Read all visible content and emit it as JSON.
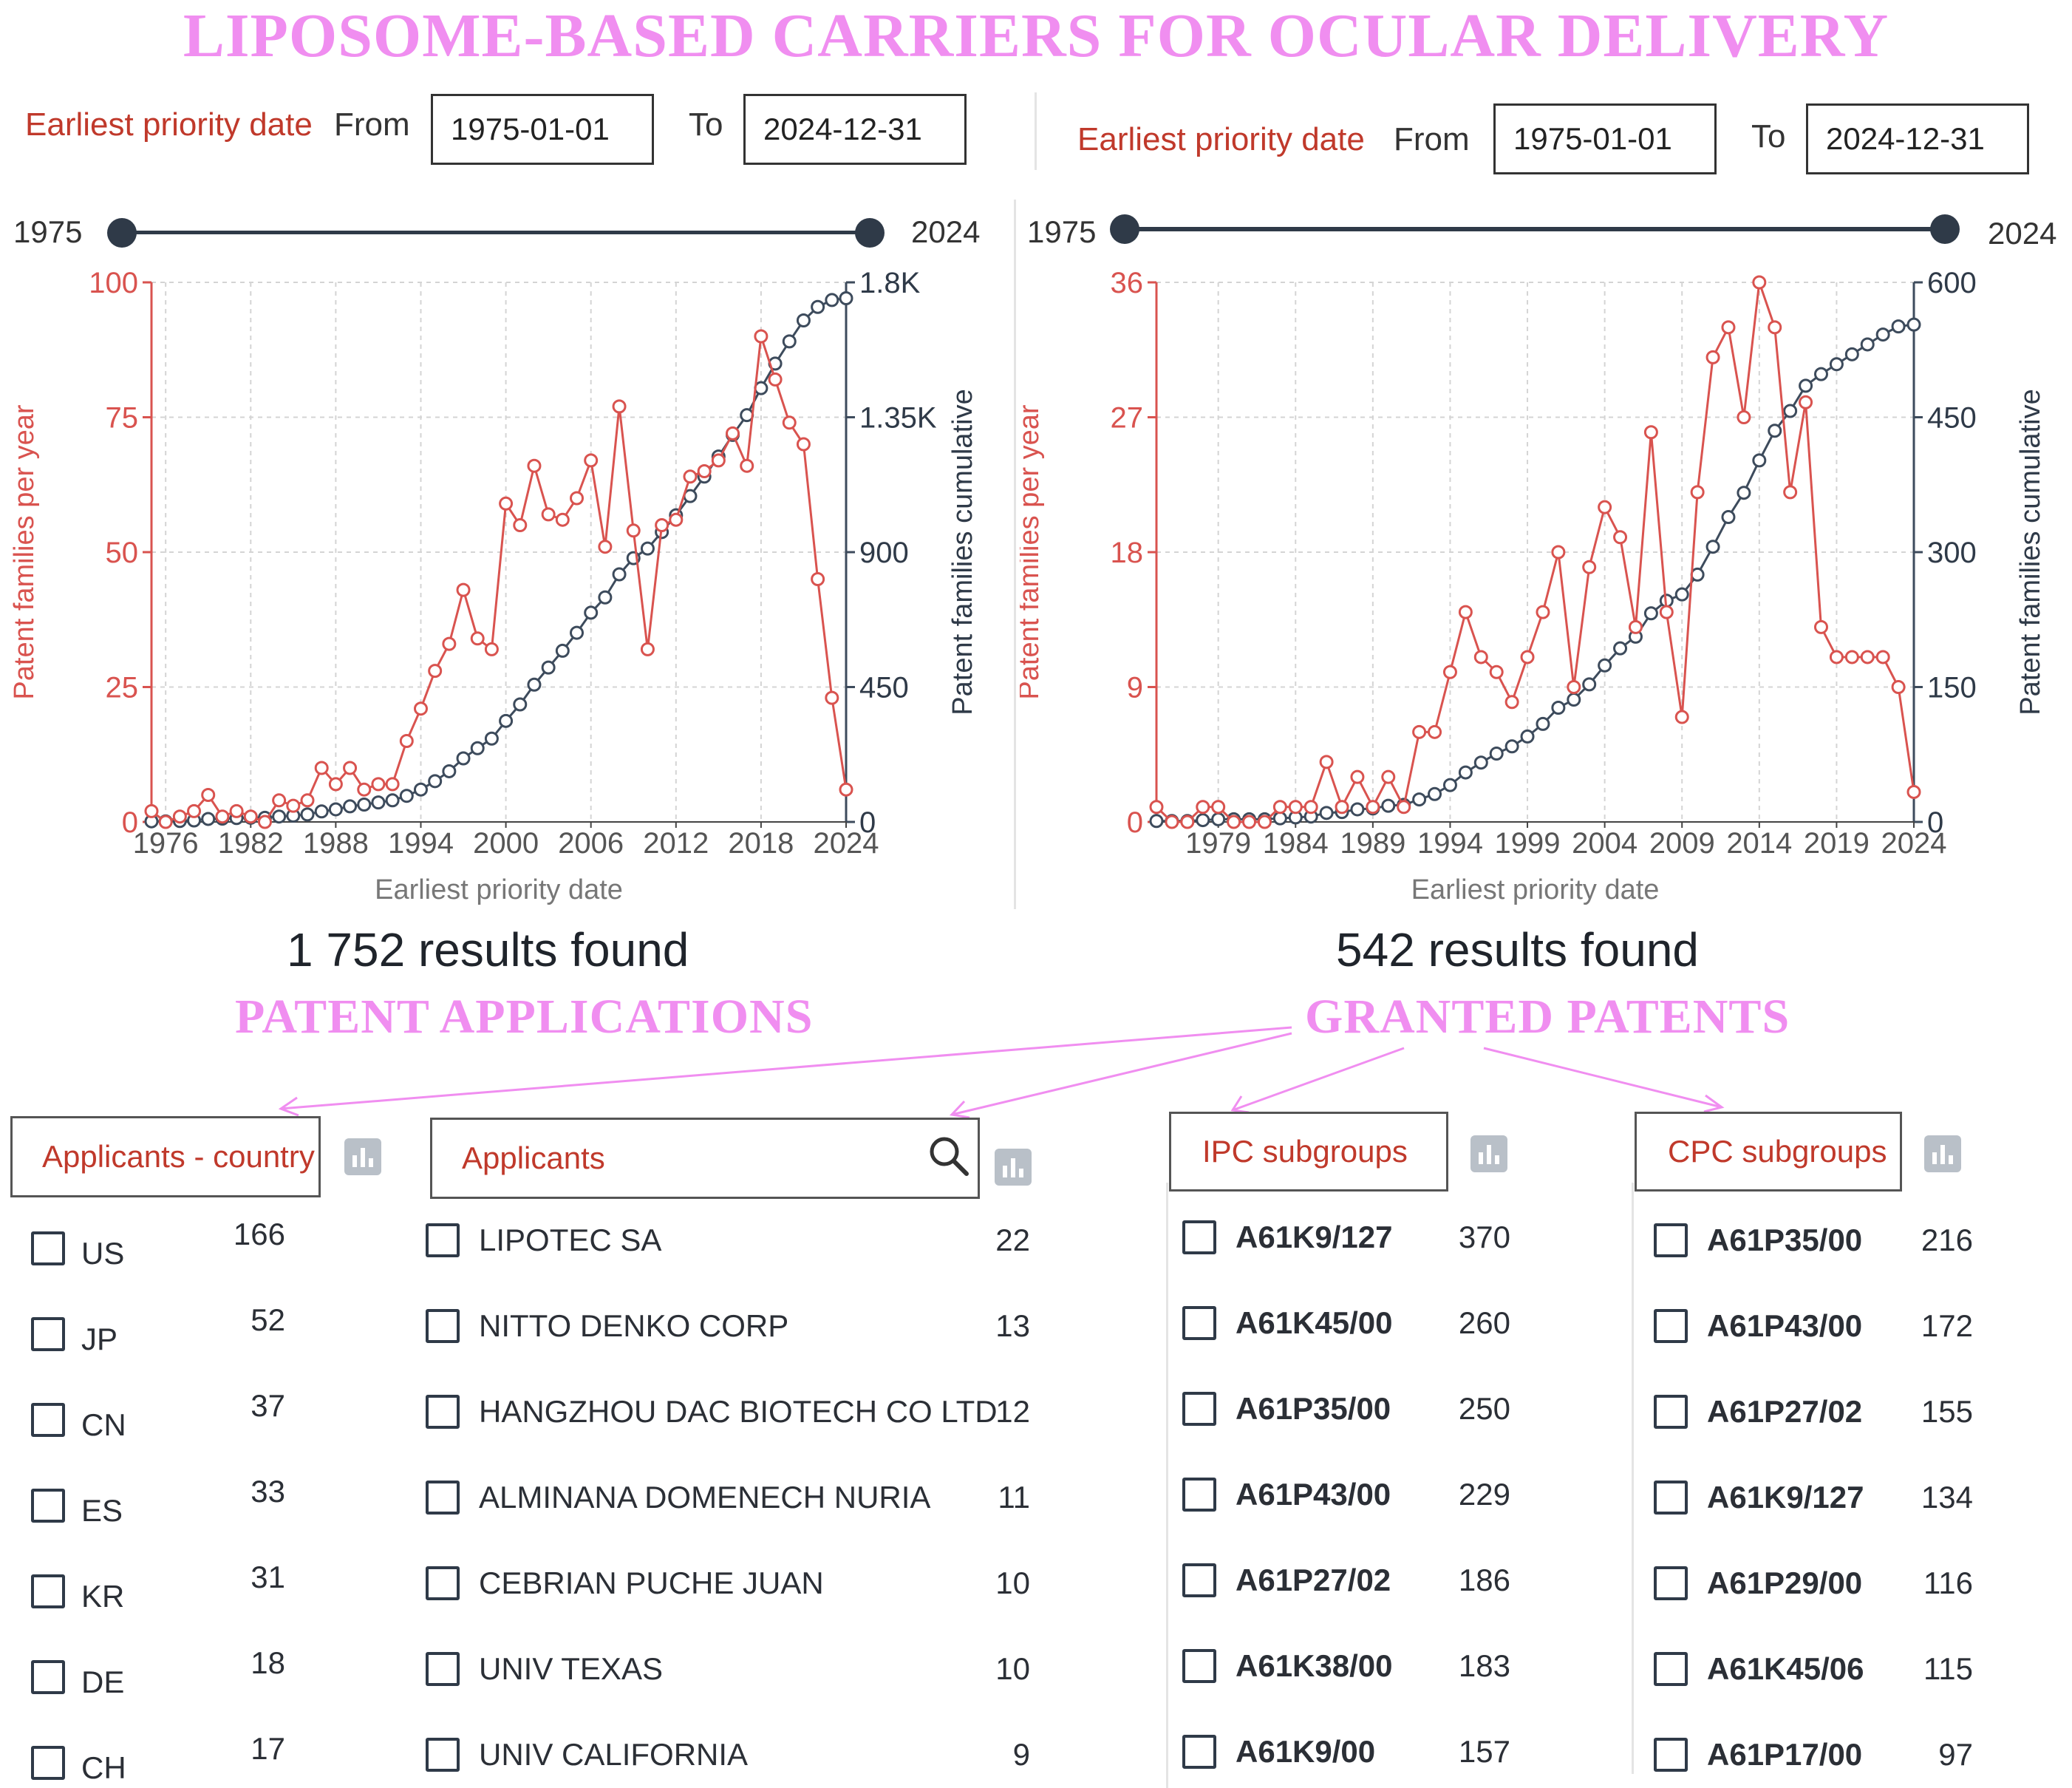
{
  "title": "LIPOSOME-BASED CARRIERS FOR OCULAR DELIVERY",
  "panels": [
    {
      "filter_label": "Earliest priority date",
      "from_label": "From",
      "from_value": "1975-01-01",
      "to_label": "To",
      "to_value": "2024-12-31",
      "slider_min": "1975",
      "slider_max": "2024",
      "results": "1 752 results found",
      "section_label": "PATENT APPLICATIONS"
    },
    {
      "filter_label": "Earliest priority date",
      "from_label": "From",
      "from_value": "1975-01-01",
      "to_label": "To",
      "to_value": "2024-12-31",
      "slider_min": "1975",
      "slider_max": "2024",
      "results": "542 results found",
      "section_label": "GRANTED PATENTS"
    }
  ],
  "chart_data": [
    {
      "type": "line",
      "title": "",
      "xlabel": "Earliest priority date",
      "ylabel_left": "Patent families per year",
      "ylabel_right": "Patent families cumulative",
      "xlim": [
        1975,
        2024
      ],
      "ylim_left": [
        0,
        100
      ],
      "ylim_right": [
        0,
        1800
      ],
      "x_ticks": [
        "1976",
        "1982",
        "1988",
        "1994",
        "2000",
        "2006",
        "2012",
        "2018",
        "2024"
      ],
      "y_ticks_left": [
        "0",
        "25",
        "50",
        "75",
        "100"
      ],
      "y_ticks_right": [
        "0",
        "450",
        "900",
        "1.35K",
        "1.8K"
      ],
      "grid": true,
      "series": [
        {
          "name": "Patent families per year",
          "axis": "left",
          "color": "#d9534f",
          "x": [
            1975,
            1976,
            1977,
            1978,
            1979,
            1980,
            1981,
            1982,
            1983,
            1984,
            1985,
            1986,
            1987,
            1988,
            1989,
            1990,
            1991,
            1992,
            1993,
            1994,
            1995,
            1996,
            1997,
            1998,
            1999,
            2000,
            2001,
            2002,
            2003,
            2004,
            2005,
            2006,
            2007,
            2008,
            2009,
            2010,
            2011,
            2012,
            2013,
            2014,
            2015,
            2016,
            2017,
            2018,
            2019,
            2020,
            2021,
            2022,
            2023,
            2024
          ],
          "values": [
            2,
            0,
            1,
            2,
            5,
            1,
            2,
            1,
            0,
            4,
            3,
            4,
            10,
            7,
            10,
            6,
            7,
            7,
            15,
            21,
            28,
            33,
            43,
            34,
            32,
            59,
            55,
            66,
            57,
            56,
            60,
            67,
            51,
            77,
            54,
            32,
            55,
            56,
            64,
            65,
            67,
            72,
            66,
            90,
            82,
            74,
            70,
            45,
            23,
            6
          ]
        },
        {
          "name": "Patent families cumulative",
          "axis": "right",
          "color": "#3d4b5c",
          "x": [
            1975,
            1976,
            1977,
            1978,
            1979,
            1980,
            1981,
            1982,
            1983,
            1984,
            1985,
            1986,
            1987,
            1988,
            1989,
            1990,
            1991,
            1992,
            1993,
            1994,
            1995,
            1996,
            1997,
            1998,
            1999,
            2000,
            2001,
            2002,
            2003,
            2004,
            2005,
            2006,
            2007,
            2008,
            2009,
            2010,
            2011,
            2012,
            2013,
            2014,
            2015,
            2016,
            2017,
            2018,
            2019,
            2020,
            2021,
            2022,
            2023,
            2024
          ],
          "values": [
            2,
            2,
            3,
            5,
            10,
            11,
            13,
            14,
            14,
            18,
            21,
            25,
            35,
            42,
            52,
            58,
            65,
            72,
            87,
            108,
            136,
            169,
            212,
            246,
            278,
            337,
            392,
            458,
            515,
            571,
            631,
            698,
            749,
            826,
            880,
            912,
            967,
            1023,
            1087,
            1152,
            1219,
            1291,
            1357,
            1447,
            1529,
            1603,
            1673,
            1718,
            1741,
            1747
          ]
        }
      ]
    },
    {
      "type": "line",
      "title": "",
      "xlabel": "Earliest priority date",
      "ylabel_left": "Patent families per year",
      "ylabel_right": "Patent families cumulative",
      "xlim": [
        1975,
        2024
      ],
      "ylim_left": [
        0,
        36
      ],
      "ylim_right": [
        0,
        600
      ],
      "x_ticks": [
        "1979",
        "1984",
        "1989",
        "1994",
        "1999",
        "2004",
        "2009",
        "2014",
        "2019",
        "2024"
      ],
      "y_ticks_left": [
        "0",
        "9",
        "18",
        "27",
        "36"
      ],
      "y_ticks_right": [
        "0",
        "150",
        "300",
        "450",
        "600"
      ],
      "grid": true,
      "series": [
        {
          "name": "Patent families per year",
          "axis": "left",
          "color": "#d9534f",
          "x": [
            1975,
            1976,
            1977,
            1978,
            1979,
            1980,
            1981,
            1982,
            1983,
            1984,
            1985,
            1986,
            1987,
            1988,
            1989,
            1990,
            1991,
            1992,
            1993,
            1994,
            1995,
            1996,
            1997,
            1998,
            1999,
            2000,
            2001,
            2002,
            2003,
            2004,
            2005,
            2006,
            2007,
            2008,
            2009,
            2010,
            2011,
            2012,
            2013,
            2014,
            2015,
            2016,
            2017,
            2018,
            2019,
            2020,
            2021,
            2022,
            2023,
            2024
          ],
          "values": [
            1,
            0,
            0,
            1,
            1,
            0,
            0,
            0,
            1,
            1,
            1,
            4,
            1,
            3,
            1,
            3,
            1,
            6,
            6,
            10,
            14,
            11,
            10,
            8,
            11,
            14,
            18,
            9,
            17,
            21,
            19,
            13,
            26,
            14,
            7,
            22,
            31,
            33,
            27,
            36,
            33,
            22,
            28,
            13,
            11,
            11,
            11,
            11,
            9,
            2
          ]
        },
        {
          "name": "Patent families cumulative",
          "axis": "right",
          "color": "#3d4b5c",
          "x": [
            1975,
            1976,
            1977,
            1978,
            1979,
            1980,
            1981,
            1982,
            1983,
            1984,
            1985,
            1986,
            1987,
            1988,
            1989,
            1990,
            1991,
            1992,
            1993,
            1994,
            1995,
            1996,
            1997,
            1998,
            1999,
            2000,
            2001,
            2002,
            2003,
            2004,
            2005,
            2006,
            2007,
            2008,
            2009,
            2010,
            2011,
            2012,
            2013,
            2014,
            2015,
            2016,
            2017,
            2018,
            2019,
            2020,
            2021,
            2022,
            2023,
            2024
          ],
          "values": [
            1,
            1,
            1,
            2,
            3,
            3,
            3,
            3,
            4,
            5,
            6,
            10,
            11,
            14,
            15,
            18,
            19,
            25,
            31,
            41,
            55,
            66,
            76,
            84,
            95,
            109,
            127,
            136,
            153,
            174,
            193,
            206,
            232,
            246,
            253,
            275,
            306,
            339,
            366,
            402,
            435,
            457,
            485,
            498,
            509,
            520,
            531,
            542,
            551,
            553
          ]
        }
      ]
    }
  ],
  "filters": {
    "applicants_country": {
      "title": "Applicants - country",
      "items": [
        {
          "label": "US",
          "count": "166"
        },
        {
          "label": "JP",
          "count": "52"
        },
        {
          "label": "CN",
          "count": "37"
        },
        {
          "label": "ES",
          "count": "33"
        },
        {
          "label": "KR",
          "count": "31"
        },
        {
          "label": "DE",
          "count": "18"
        },
        {
          "label": "CH",
          "count": "17"
        }
      ]
    },
    "applicants": {
      "title": "Applicants",
      "items": [
        {
          "label": "LIPOTEC SA",
          "count": "22"
        },
        {
          "label": "NITTO DENKO CORP",
          "count": "13"
        },
        {
          "label": "HANGZHOU DAC BIOTECH CO LTD",
          "count": "12"
        },
        {
          "label": "ALMINANA DOMENECH NURIA",
          "count": "11"
        },
        {
          "label": "CEBRIAN PUCHE JUAN",
          "count": "10"
        },
        {
          "label": "UNIV TEXAS",
          "count": "10"
        },
        {
          "label": "UNIV CALIFORNIA",
          "count": "9"
        }
      ]
    },
    "ipc": {
      "title": "IPC subgroups",
      "items": [
        {
          "label": "A61K9/127",
          "count": "370"
        },
        {
          "label": "A61K45/00",
          "count": "260"
        },
        {
          "label": "A61P35/00",
          "count": "250"
        },
        {
          "label": "A61P43/00",
          "count": "229"
        },
        {
          "label": "A61P27/02",
          "count": "186"
        },
        {
          "label": "A61K38/00",
          "count": "183"
        },
        {
          "label": "A61K9/00",
          "count": "157"
        }
      ]
    },
    "cpc": {
      "title": "CPC subgroups",
      "items": [
        {
          "label": "A61P35/00",
          "count": "216"
        },
        {
          "label": "A61P43/00",
          "count": "172"
        },
        {
          "label": "A61P27/02",
          "count": "155"
        },
        {
          "label": "A61K9/127",
          "count": "134"
        },
        {
          "label": "A61P29/00",
          "count": "116"
        },
        {
          "label": "A61K45/06",
          "count": "115"
        },
        {
          "label": "A61P17/00",
          "count": "97"
        }
      ]
    }
  }
}
